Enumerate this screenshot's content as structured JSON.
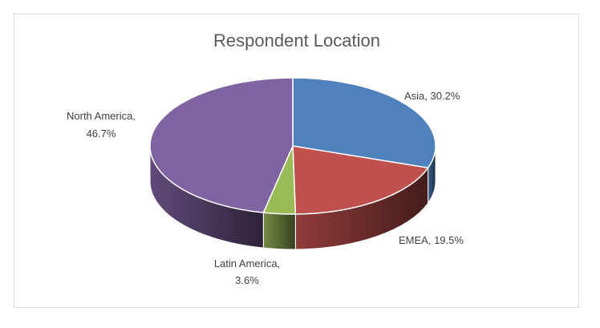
{
  "chart_data": {
    "type": "pie",
    "title": "Respondent Location",
    "slices": [
      {
        "name": "Asia",
        "value": 30.2,
        "label_line1": "Asia, 30.2%",
        "label_line2": "",
        "color": "#4f81bd"
      },
      {
        "name": "EMEA",
        "value": 19.5,
        "label_line1": "EMEA, 19.5%",
        "label_line2": "",
        "color": "#c0504d"
      },
      {
        "name": "Latin America",
        "value": 3.6,
        "label_line1": "Latin America,",
        "label_line2": "3.6%",
        "color": "#9bbb59"
      },
      {
        "name": "North America",
        "value": 46.7,
        "label_line1": "North America,",
        "label_line2": "46.7%",
        "color": "#8064a2"
      }
    ],
    "style": "3d",
    "legend": "none"
  }
}
